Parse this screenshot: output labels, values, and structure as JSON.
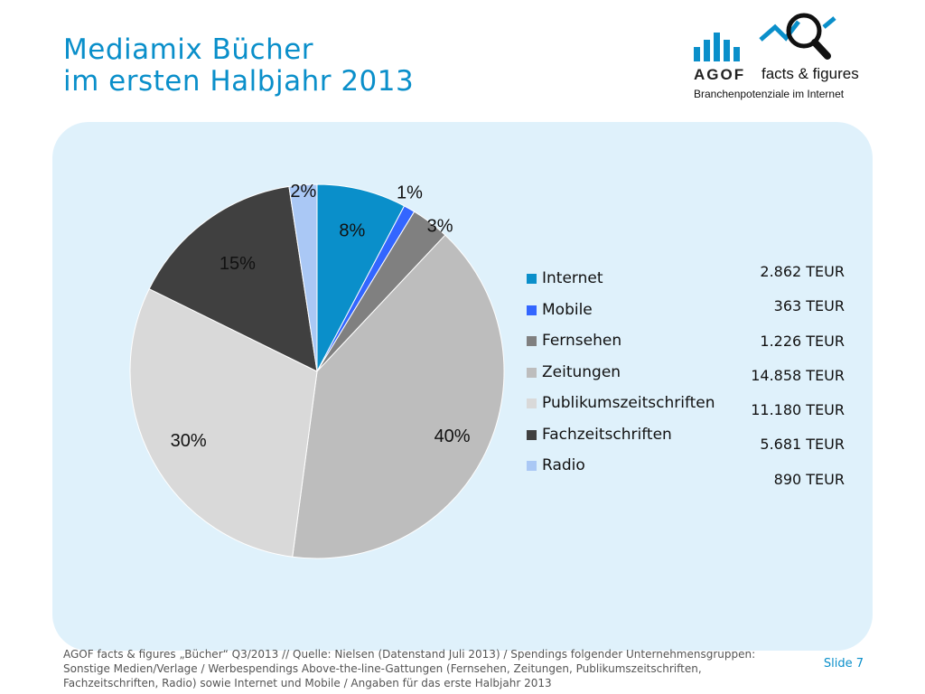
{
  "header": {
    "title_line1": "Mediamix Bücher",
    "title_line2": "im ersten Halbjahr 2013"
  },
  "logo": {
    "brand": "AGOF",
    "product": "facts & figures",
    "tagline": "Branchenpotenziale im Internet",
    "icon": "magnifier-chart-icon"
  },
  "chart_data": {
    "type": "pie",
    "categories": [
      "Internet",
      "Mobile",
      "Fernsehen",
      "Zeitungen",
      "Publikumszeitschriften",
      "Fachzeitschriften",
      "Radio"
    ],
    "values": [
      2862,
      363,
      1226,
      14858,
      11180,
      5681,
      890
    ],
    "value_labels": [
      "2.862 TEUR",
      "363 TEUR",
      "1.226 TEUR",
      "14.858 TEUR",
      "11.180 TEUR",
      "5.681 TEUR",
      "890 TEUR"
    ],
    "percent_labels": [
      "8%",
      "1%",
      "3%",
      "40%",
      "30%",
      "15%",
      "2%"
    ],
    "colors": [
      "#0a8fca",
      "#3366ff",
      "#808080",
      "#bdbdbd",
      "#d9d9d9",
      "#404040",
      "#aac8f5"
    ],
    "legend_position": "right"
  },
  "footer": {
    "note": "AGOF facts & figures „Bücher“ Q3/2013 // Quelle: Nielsen (Datenstand Juli 2013) / Spendings folgender Unternehmensgruppen: Sonstige Medien/Verlage / Werbespendings Above-the-line-Gattungen (Fernsehen, Zeitungen, Publikumszeitschriften, Fachzeitschriften, Radio) sowie Internet und Mobile / Angaben für das erste Halbjahr 2013",
    "slide": "Slide 7"
  }
}
